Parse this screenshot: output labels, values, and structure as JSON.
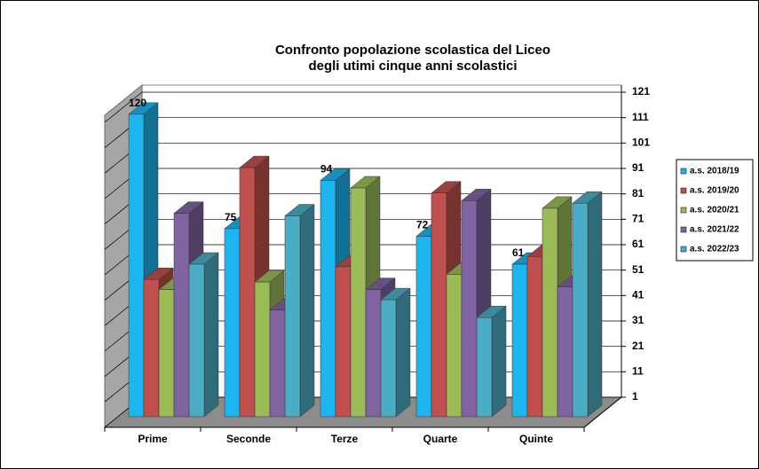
{
  "chart_data": {
    "type": "bar3d",
    "title": [
      "Confronto popolazione scolastica  del Liceo",
      "degli utimi cinque anni  scolastici"
    ],
    "categories": [
      "Prime",
      "Seconde",
      "Terze",
      "Quarte",
      "Quinte"
    ],
    "series": [
      {
        "name": "a.s. 2018/19",
        "color": "#1cb5ef",
        "values": [
          120,
          75,
          94,
          72,
          61
        ],
        "labels": true
      },
      {
        "name": "a.s. 2019/20",
        "color": "#c0504d",
        "values": [
          55,
          99,
          60,
          89,
          64
        ]
      },
      {
        "name": "a.s. 2020/21",
        "color": "#9bbb59",
        "values": [
          51,
          54,
          91,
          57,
          83
        ]
      },
      {
        "name": "a.s. 2021/22",
        "color": "#8064a2",
        "values": [
          81,
          43,
          51,
          86,
          52
        ]
      },
      {
        "name": "a.s. 2022/23",
        "color": "#4bacc6",
        "values": [
          61,
          80,
          47,
          40,
          85
        ]
      }
    ],
    "ylim": [
      1,
      121
    ],
    "yticks": [
      1,
      11,
      21,
      31,
      41,
      51,
      61,
      71,
      81,
      91,
      101,
      111,
      121
    ],
    "grid": true,
    "legend": "right"
  }
}
